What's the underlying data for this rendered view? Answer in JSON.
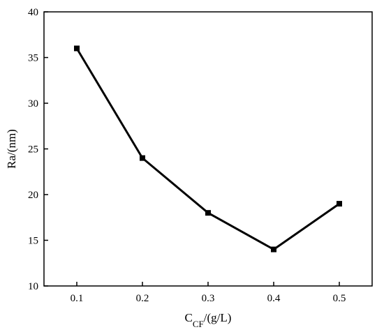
{
  "chart_data": {
    "type": "line",
    "x": [
      0.1,
      0.2,
      0.3,
      0.4,
      0.5
    ],
    "series": [
      {
        "values": [
          36,
          24,
          18,
          14,
          19
        ]
      }
    ],
    "xticks": [
      "0.1",
      "0.2",
      "0.3",
      "0.4",
      "0.5"
    ],
    "yticks": [
      "10",
      "15",
      "20",
      "25",
      "30",
      "35",
      "40"
    ],
    "xlim": [
      0.05,
      0.55
    ],
    "ylim": [
      10,
      40
    ],
    "xlabel": {
      "main": "C",
      "sub": "CF",
      "rest": "/(g/L)"
    },
    "ylabel": "Ra/(nm)",
    "grid": false,
    "line_color": "#000000",
    "marker": "square"
  }
}
